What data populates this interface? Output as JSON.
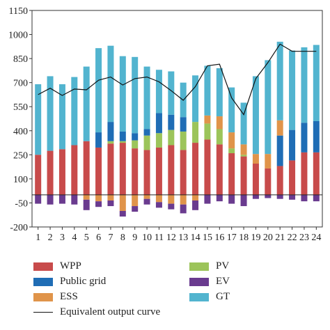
{
  "chart_data": {
    "type": "bar",
    "stacked": true,
    "categories": [
      "1",
      "2",
      "3",
      "4",
      "5",
      "6",
      "7",
      "8",
      "9",
      "10",
      "11",
      "12",
      "13",
      "14",
      "15",
      "16",
      "17",
      "18",
      "19",
      "20",
      "21",
      "22",
      "23",
      "24"
    ],
    "ylim": [
      -200,
      1150
    ],
    "yticks": [
      -200,
      -50,
      100,
      250,
      400,
      550,
      700,
      850,
      1000,
      1150
    ],
    "zero_line": true,
    "colors": {
      "WPP": "#c84b4b",
      "Public grid": "#1f6db5",
      "ESS": "#e0944a",
      "PV": "#9cc45a",
      "EV": "#6a3b8f",
      "GT": "#52b4cf",
      "Equivalent output curve": "#111111"
    },
    "series": [
      {
        "name": "WPP",
        "kind": "bar-positive",
        "values": [
          250,
          275,
          285,
          310,
          335,
          295,
          320,
          325,
          290,
          280,
          295,
          310,
          280,
          325,
          345,
          315,
          260,
          240,
          195,
          165,
          180,
          215,
          265,
          265
        ]
      },
      {
        "name": "PV",
        "kind": "bar-positive",
        "values": [
          0,
          0,
          0,
          0,
          0,
          0,
          15,
          10,
          50,
          90,
          90,
          95,
          115,
          130,
          100,
          95,
          30,
          10,
          0,
          0,
          0,
          0,
          0,
          0
        ]
      },
      {
        "name": "Public grid",
        "kind": "bar-positive",
        "values": [
          0,
          0,
          0,
          0,
          0,
          95,
          120,
          60,
          45,
          40,
          125,
          95,
          90,
          0,
          0,
          0,
          0,
          0,
          0,
          0,
          190,
          190,
          185,
          195
        ]
      },
      {
        "name": "ESS",
        "kind": "bar-positive",
        "values": [
          0,
          0,
          0,
          0,
          0,
          0,
          0,
          0,
          0,
          0,
          0,
          0,
          0,
          0,
          50,
          80,
          100,
          65,
          60,
          90,
          95,
          0,
          0,
          0
        ]
      },
      {
        "name": "GT",
        "kind": "bar-positive",
        "values": [
          440,
          465,
          405,
          425,
          465,
          525,
          475,
          470,
          475,
          390,
          270,
          270,
          215,
          290,
          310,
          300,
          280,
          260,
          485,
          585,
          490,
          495,
          470,
          475
        ]
      },
      {
        "name": "ESS",
        "kind": "bar-negative",
        "values": [
          0,
          0,
          0,
          0,
          -30,
          -40,
          -35,
          -100,
          -70,
          -25,
          -45,
          -55,
          -60,
          -35,
          0,
          0,
          0,
          0,
          0,
          0,
          0,
          0,
          0,
          0
        ]
      },
      {
        "name": "EV",
        "kind": "bar-negative",
        "values": [
          -55,
          -60,
          -55,
          -60,
          -65,
          -35,
          -35,
          -35,
          -35,
          -35,
          -35,
          -35,
          -55,
          -60,
          -55,
          -40,
          -55,
          -70,
          -25,
          -20,
          -25,
          -30,
          -40,
          -40
        ]
      },
      {
        "name": "Equivalent output curve",
        "kind": "line",
        "values": [
          625,
          665,
          620,
          660,
          655,
          715,
          735,
          685,
          725,
          735,
          705,
          650,
          590,
          675,
          805,
          815,
          605,
          500,
          725,
          825,
          940,
          895,
          895,
          895
        ]
      }
    ],
    "legend": [
      {
        "label": "WPP",
        "key": "WPP",
        "kind": "swatch"
      },
      {
        "label": "PV",
        "key": "PV",
        "kind": "swatch"
      },
      {
        "label": "Public grid",
        "key": "Public grid",
        "kind": "swatch"
      },
      {
        "label": "EV",
        "key": "EV",
        "kind": "swatch"
      },
      {
        "label": "ESS",
        "key": "ESS",
        "kind": "swatch"
      },
      {
        "label": "GT",
        "key": "GT",
        "kind": "swatch"
      },
      {
        "label": "Equivalent output curve",
        "key": "Equivalent output curve",
        "kind": "line"
      }
    ],
    "legend_position": "bottom"
  }
}
